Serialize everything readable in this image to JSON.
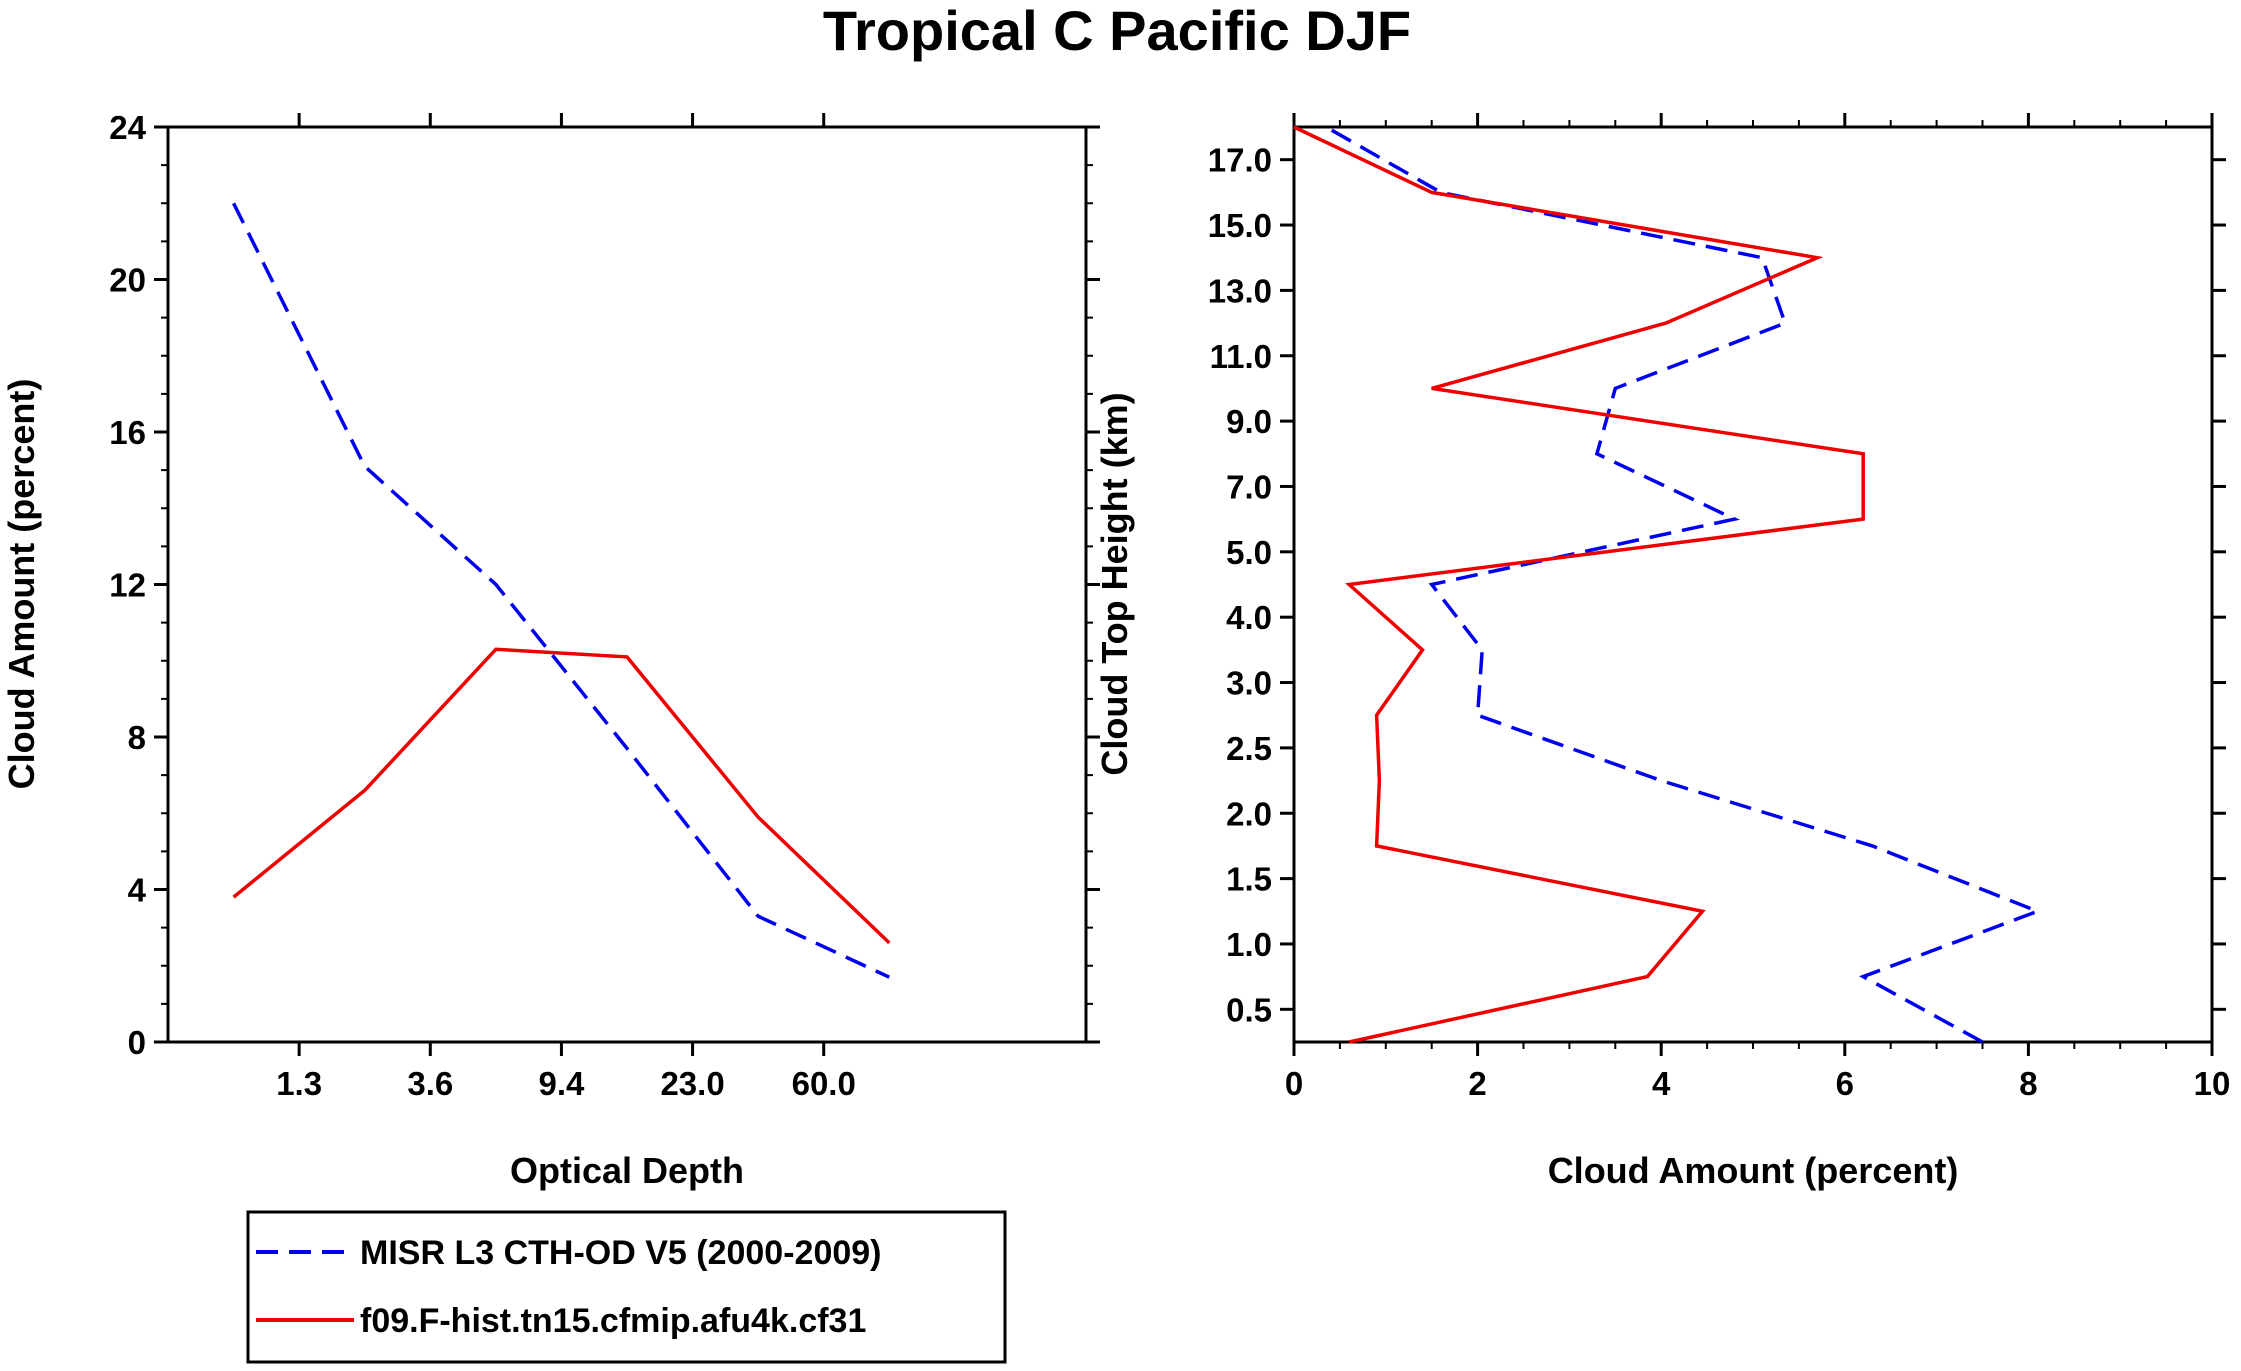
{
  "figure_title": "Tropical C Pacific DJF",
  "colors": {
    "obs": "#0000ee",
    "model": "#ee0000",
    "axis": "#000000"
  },
  "legend": [
    {
      "label": "MISR L3 CTH-OD V5 (2000-2009)",
      "style": "dashed",
      "color": "#0000ee"
    },
    {
      "label": "f09.F-hist.tn15.cfmip.afu4k.cf31",
      "style": "solid",
      "color": "#ee0000"
    }
  ],
  "chart_data": [
    {
      "type": "line",
      "title": "",
      "xlabel": "Optical Depth",
      "ylabel": "Cloud Amount (percent)",
      "ylim": [
        0,
        24
      ],
      "yticks": [
        "0",
        "4",
        "8",
        "12",
        "16",
        "20",
        "24"
      ],
      "xbins": 7,
      "xtick_positions": [
        1,
        2,
        3,
        4,
        5
      ],
      "xtick_labels": [
        "1.3",
        "3.6",
        "9.4",
        "23.0",
        "60.0"
      ],
      "x": [
        0.5,
        1.5,
        2.5,
        3.5,
        4.5,
        5.5
      ],
      "series": [
        {
          "name": "MISR L3 CTH-OD V5 (2000-2009)",
          "style": "dashed",
          "color": "#0000ee",
          "values": [
            22.0,
            15.1,
            12.0,
            7.7,
            3.3,
            1.7
          ]
        },
        {
          "name": "f09.F-hist.tn15.cfmip.afu4k.cf31",
          "style": "solid",
          "color": "#ee0000",
          "values": [
            3.8,
            6.6,
            10.3,
            10.1,
            5.9,
            2.6
          ]
        }
      ]
    },
    {
      "type": "line",
      "title": "",
      "xlabel": "Cloud Amount (percent)",
      "ylabel": "Cloud Top Height (km)",
      "xlim": [
        0,
        10
      ],
      "xticks": [
        "0",
        "2",
        "4",
        "6",
        "8",
        "10"
      ],
      "ylim": [
        0,
        14
      ],
      "ytick_positions": [
        0.5,
        1.5,
        2.5,
        3.5,
        4.5,
        5.5,
        6.5,
        7.5,
        8.5,
        9.5,
        10.5,
        11.5,
        12.5,
        13.5
      ],
      "ytick_labels": [
        "0.5",
        "1.0",
        "1.5",
        "2.0",
        "2.5",
        "3.0",
        "4.0",
        "5.0",
        "7.0",
        "9.0",
        "11.0",
        "13.0",
        "15.0",
        "17.0"
      ],
      "y": [
        0,
        1,
        2,
        3,
        4,
        5,
        6,
        7,
        8,
        9,
        10,
        11,
        12,
        13,
        14
      ],
      "series": [
        {
          "name": "MISR L3 CTH-OD V5 (2000-2009)",
          "style": "dashed",
          "color": "#0000ee",
          "values": [
            7.5,
            6.2,
            8.1,
            6.3,
            4.0,
            2.0,
            2.05,
            1.5,
            4.8,
            3.3,
            3.5,
            5.35,
            5.1,
            1.6,
            0.35
          ]
        },
        {
          "name": "f09.F-hist.tn15.cfmip.afu4k.cf31",
          "style": "solid",
          "color": "#ee0000",
          "values": [
            0.6,
            3.85,
            4.45,
            0.9,
            0.93,
            0.9,
            1.4,
            0.6,
            6.2,
            6.2,
            1.5,
            4.05,
            5.7,
            1.5,
            0.0
          ]
        }
      ]
    }
  ]
}
